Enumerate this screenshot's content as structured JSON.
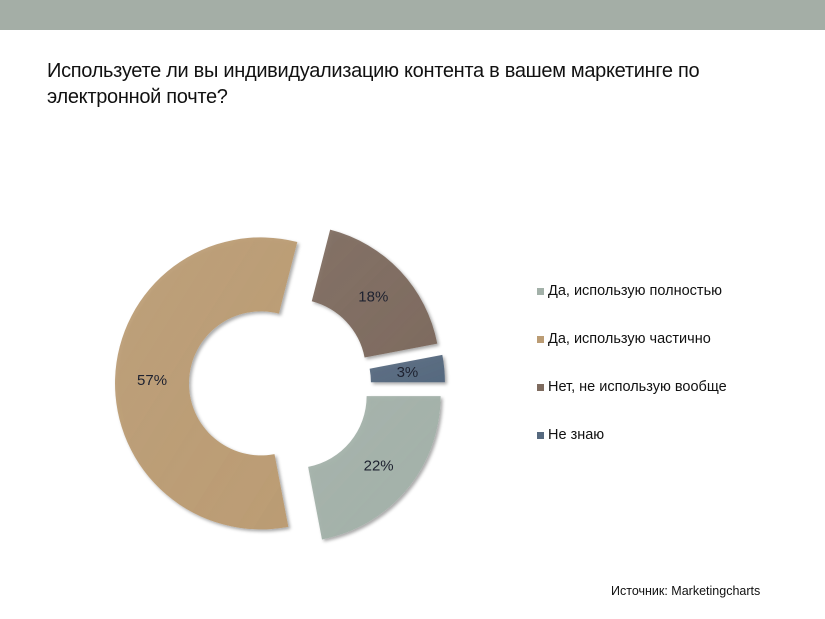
{
  "title": "Используете ли вы индивидуализацию контента в вашем маркетинге по электронной почте?",
  "source": "Источник: Marketingcharts",
  "chart_data": {
    "type": "pie",
    "subtype": "donut-exploded",
    "title": "Используете ли вы индивидуализацию контента в вашем маркетинге по электронной почте?",
    "categories": [
      "Да, использую полностью",
      "Да, использую частично",
      "Нет, не использую вообще",
      "Не знаю"
    ],
    "values": [
      22,
      57,
      18,
      3
    ],
    "labels": [
      "22%",
      "57%",
      "18%",
      "3%"
    ],
    "colors": [
      "#a3b1a9",
      "#bb9c74",
      "#7e6b5f",
      "#56697f"
    ],
    "legend_position": "right"
  }
}
